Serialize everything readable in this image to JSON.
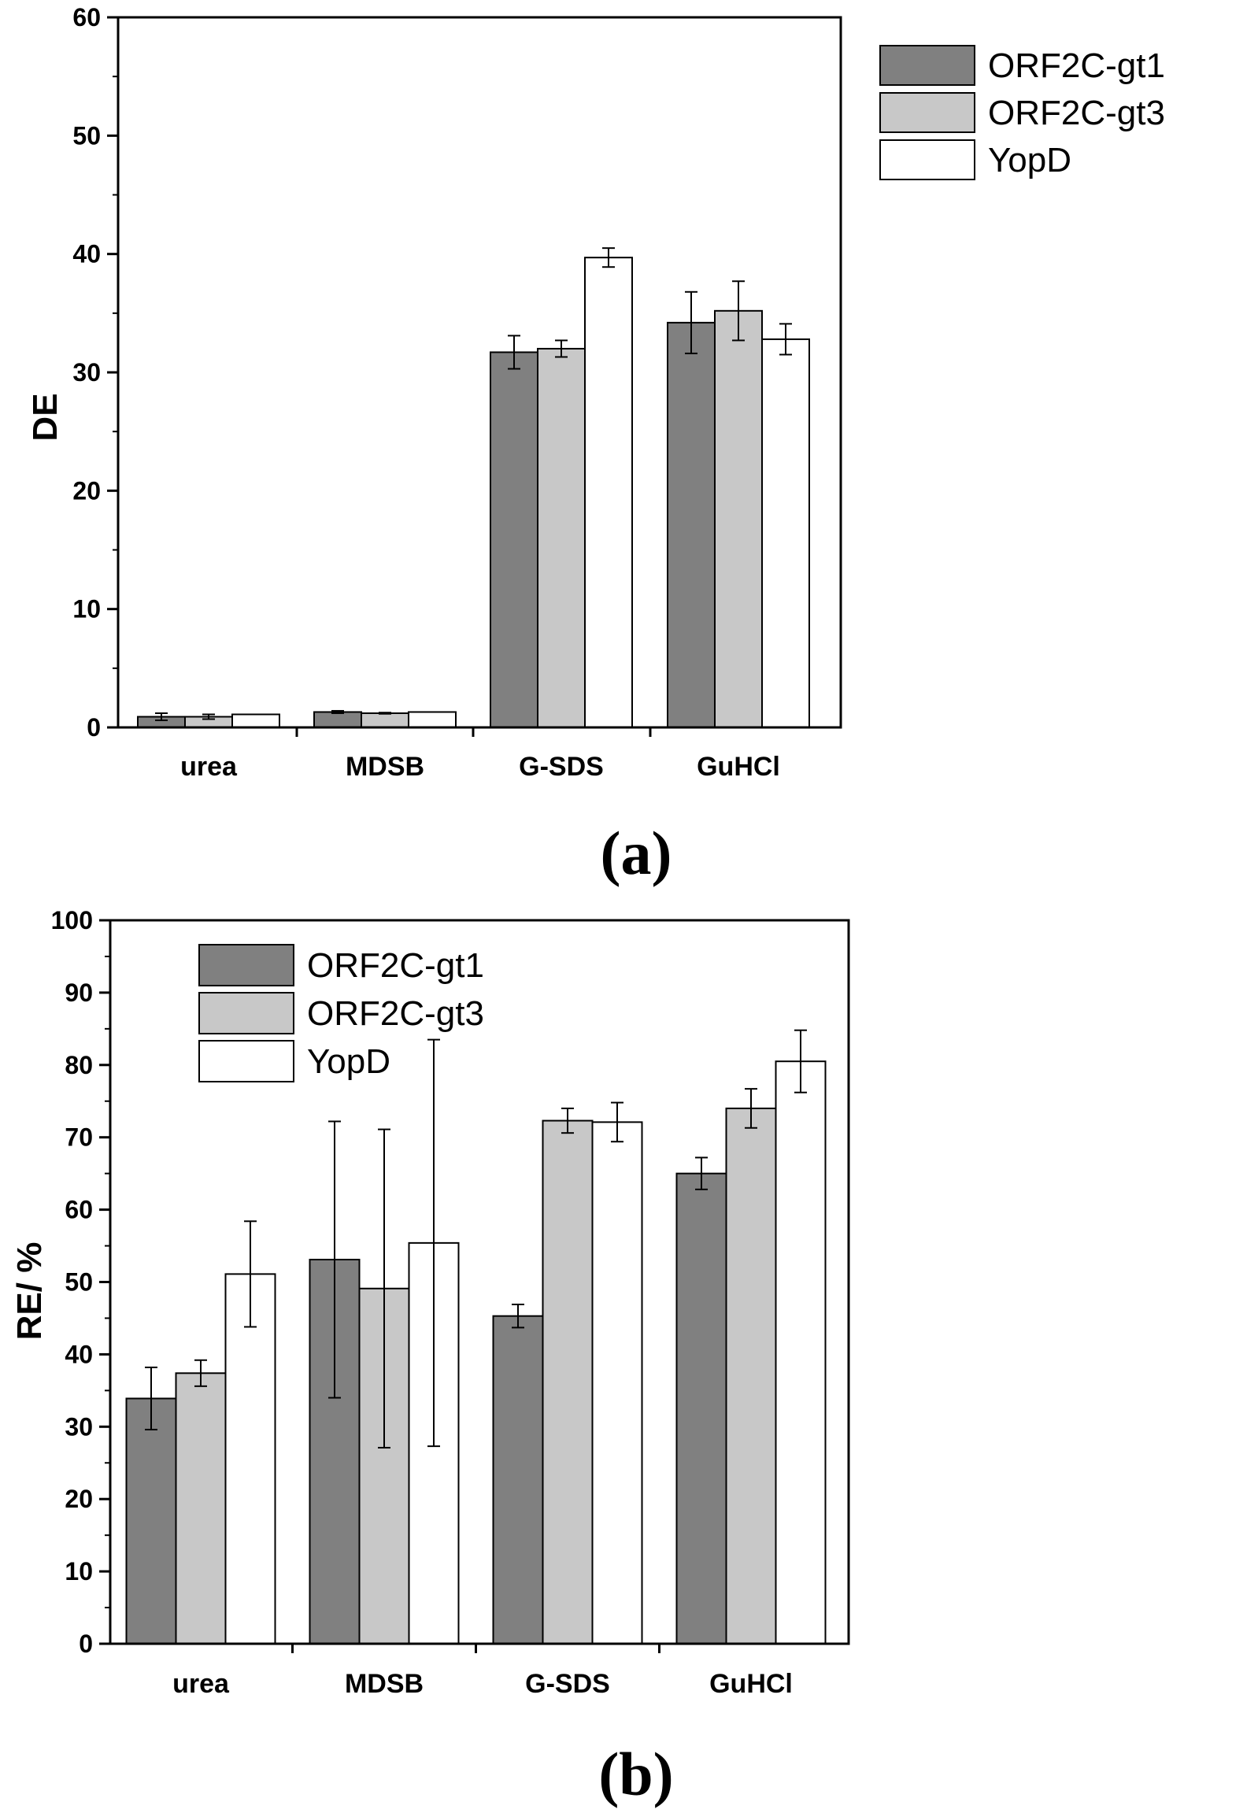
{
  "chart_data": [
    {
      "type": "bar",
      "panel_label": "(a)",
      "categories": [
        "urea",
        "MDSB",
        "G-SDS",
        "GuHCl"
      ],
      "ylabel": "DE",
      "xlabel": "",
      "ylim": [
        0,
        60
      ],
      "yticks": [
        "0",
        "10",
        "20",
        "30",
        "40",
        "50",
        "60"
      ],
      "legend_position": "top-right",
      "series": [
        {
          "name": "ORF2C-gt1",
          "color": "#808080",
          "values": [
            0.9,
            1.3,
            31.7,
            34.2
          ],
          "errors": [
            0.3,
            0.1,
            1.4,
            2.6
          ]
        },
        {
          "name": "ORF2C-gt3",
          "color": "#c8c8c8",
          "values": [
            0.9,
            1.2,
            32.0,
            35.2
          ],
          "errors": [
            0.2,
            0.05,
            0.7,
            2.5
          ]
        },
        {
          "name": "YopD",
          "color": "#ffffff",
          "values": [
            1.1,
            1.3,
            39.7,
            32.8
          ],
          "errors": [
            0.0,
            0.0,
            0.8,
            1.3
          ]
        }
      ]
    },
    {
      "type": "bar",
      "panel_label": "(b)",
      "categories": [
        "urea",
        "MDSB",
        "G-SDS",
        "GuHCl"
      ],
      "ylabel": "RE/ %",
      "xlabel": "",
      "ylim": [
        0,
        100
      ],
      "yticks": [
        "0",
        "10",
        "20",
        "30",
        "40",
        "50",
        "60",
        "70",
        "80",
        "90",
        "100"
      ],
      "legend_position": "top-left",
      "series": [
        {
          "name": "ORF2C-gt1",
          "color": "#808080",
          "values": [
            33.9,
            53.1,
            45.3,
            65.0
          ],
          "errors": [
            4.3,
            19.1,
            1.6,
            2.2
          ]
        },
        {
          "name": "ORF2C-gt3",
          "color": "#c8c8c8",
          "values": [
            37.4,
            49.1,
            72.3,
            74.0
          ],
          "errors": [
            1.8,
            22.0,
            1.7,
            2.7
          ]
        },
        {
          "name": "YopD",
          "color": "#ffffff",
          "values": [
            51.1,
            55.4,
            72.1,
            80.5
          ],
          "errors": [
            7.3,
            28.1,
            2.7,
            4.3
          ]
        }
      ]
    }
  ]
}
